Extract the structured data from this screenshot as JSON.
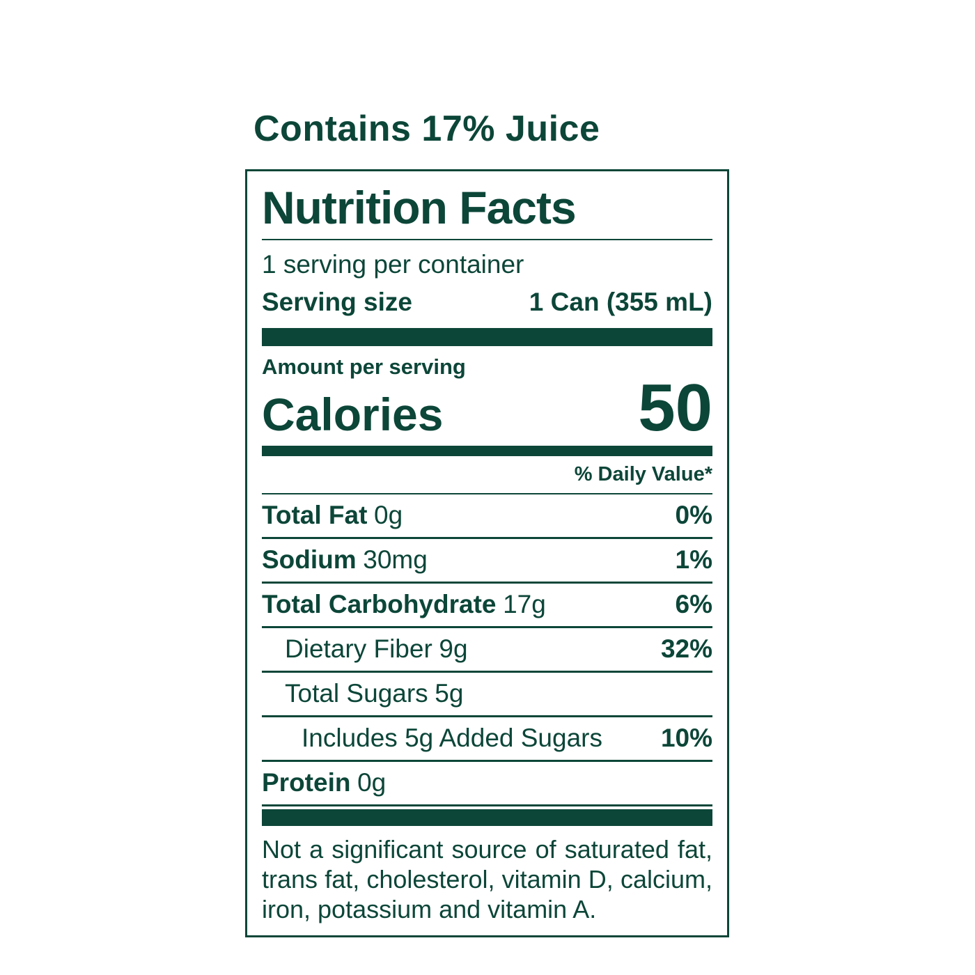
{
  "colors": {
    "green": "#0c4638",
    "background": "#ffffff"
  },
  "header": {
    "contains_text": "Contains 17% Juice"
  },
  "label": {
    "title": "Nutrition Facts",
    "servings_per_container": "1 serving per container",
    "serving_size": {
      "label": "Serving size",
      "value": "1 Can (355 mL)"
    },
    "amount_per_serving": "Amount per serving",
    "calories": {
      "label": "Calories",
      "value": "50"
    },
    "daily_value_header": "% Daily Value*",
    "nutrients": [
      {
        "name": "Total Fat",
        "amount": "0g",
        "dv": "0%"
      },
      {
        "name": "Sodium",
        "amount": "30mg",
        "dv": "1%"
      },
      {
        "name": "Total Carbohydrate",
        "amount": "17g",
        "dv": "6%"
      },
      {
        "name": "Dietary Fiber",
        "amount": "9g",
        "dv": "32%"
      },
      {
        "name": "Total Sugars",
        "amount": "5g",
        "dv": ""
      },
      {
        "name": "Includes 5g Added Sugars",
        "amount": "",
        "dv": "10%"
      },
      {
        "name": "Protein",
        "amount": "0g",
        "dv": ""
      }
    ],
    "footnote_lines": [
      "Not a significant source of saturated fat,",
      "trans fat, cholesterol, vitamin D, calcium,",
      "iron, potassium and vitamin A."
    ]
  }
}
